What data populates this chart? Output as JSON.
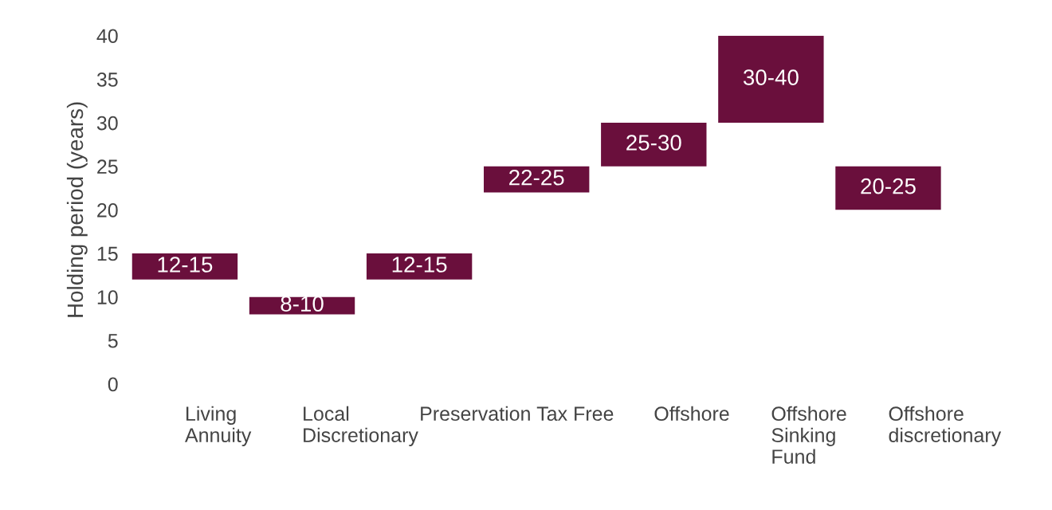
{
  "chart_data": {
    "type": "bar",
    "ylabel": "Holding period (years)",
    "categories": [
      "Living\nAnnuity",
      "Local\nDiscretionary",
      "Preservation",
      "Tax Free",
      "Offshore",
      "Offshore\nSinking\nFund",
      "Offshore\ndiscretionary"
    ],
    "base": [
      12,
      8,
      12,
      22,
      25,
      30,
      20
    ],
    "values": [
      3,
      2,
      3,
      3,
      5,
      10,
      5
    ],
    "value_labels": [
      "12-15",
      "8-10",
      "12-15",
      "22-25",
      "25-30",
      "30-40",
      "20-25"
    ],
    "color": "#6a0f3c",
    "ylim": [
      0,
      40
    ],
    "yticks": [
      0,
      5,
      10,
      15,
      20,
      25,
      30,
      35,
      40
    ],
    "grid": false,
    "legend": false
  }
}
